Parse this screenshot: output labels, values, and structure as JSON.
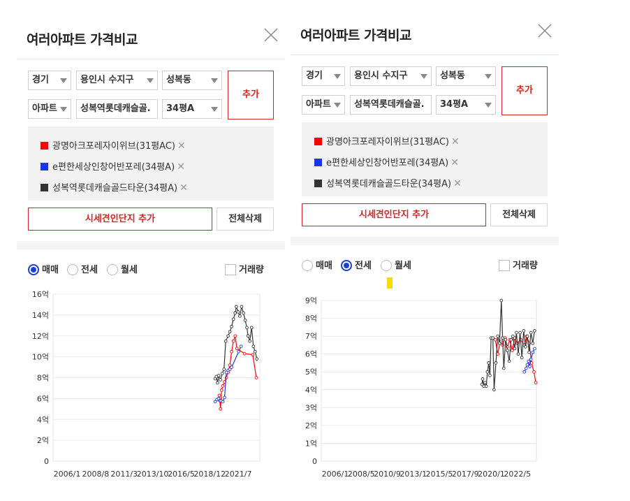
{
  "panels": [
    {
      "title": "여러아파트 가격비교",
      "filters": {
        "province": "경기",
        "city": "용인시 수지구",
        "dong": "성복동",
        "type": "아파트",
        "complex": "성복역롯데캐슬골.",
        "size": "34평A"
      },
      "add_label": "추가",
      "selected": [
        {
          "name": "광명아크포레자이위브(31평AC)",
          "color": "#ff0000"
        },
        {
          "name": "e편한세상인창어반포레(34평A)",
          "color": "#1a35e6"
        },
        {
          "name": "성복역롯데캐슬골드타운(34평A)",
          "color": "#333333"
        }
      ],
      "market_button": "시세견인단지 추가",
      "clear_button": "전체삭제",
      "radios": [
        {
          "label": "매매",
          "checked": true
        },
        {
          "label": "전세",
          "checked": false
        },
        {
          "label": "월세",
          "checked": false
        }
      ],
      "volume_label": "거래량",
      "chart_data": {
        "type": "line",
        "y_ticks": [
          "0",
          "2억",
          "4억",
          "6억",
          "8억",
          "10억",
          "12억",
          "14억",
          "16억"
        ],
        "x_ticks": [
          "2006/1",
          "2008/8",
          "2011/3",
          "2013/10",
          "2016/5",
          "2018/12",
          "2021/7"
        ],
        "ylim": [
          0,
          16
        ],
        "xlim": [
          2006.0,
          2023.6
        ],
        "series": [
          {
            "name": "광명아크포레자이위브(31평AC)",
            "color": "#ff0000",
            "points": [
              [
                2020.05,
                5.9
              ],
              [
                2020.15,
                6.3
              ],
              [
                2020.25,
                5.0
              ],
              [
                2020.35,
                6.8
              ],
              [
                2020.45,
                7.2
              ],
              [
                2020.6,
                7.6
              ],
              [
                2020.75,
                8.0
              ],
              [
                2020.9,
                8.5
              ],
              [
                2021.05,
                9.2
              ],
              [
                2021.2,
                10.5
              ],
              [
                2021.35,
                11.5
              ],
              [
                2021.5,
                12.0
              ],
              [
                2021.65,
                10.8
              ],
              [
                2022.3,
                10.3
              ],
              [
                2023.0,
                10.2
              ],
              [
                2023.3,
                8.0
              ]
            ]
          },
          {
            "name": "e편한세상인창어반포레(34평A)",
            "color": "#1a35e6",
            "points": [
              [
                2019.8,
                5.7
              ],
              [
                2019.95,
                5.9
              ],
              [
                2020.1,
                6.0
              ],
              [
                2020.2,
                5.8
              ],
              [
                2020.3,
                5.8
              ],
              [
                2020.45,
                5.7
              ],
              [
                2020.6,
                6.1
              ],
              [
                2020.75,
                8.5
              ],
              [
                2020.9,
                8.7
              ],
              [
                2021.05,
                8.8
              ],
              [
                2021.2,
                9.0
              ],
              [
                2021.8,
                10.5
              ],
              [
                2022.0,
                11.0
              ]
            ]
          },
          {
            "name": "성복역롯데캐슬골드타운(34평A)",
            "color": "#333333",
            "points": [
              [
                2019.8,
                7.9
              ],
              [
                2019.9,
                8.1
              ],
              [
                2020.0,
                7.5
              ],
              [
                2020.1,
                8.2
              ],
              [
                2020.25,
                7.8
              ],
              [
                2020.4,
                8.4
              ],
              [
                2020.55,
                8.8
              ],
              [
                2020.7,
                11.5
              ],
              [
                2020.9,
                12.0
              ],
              [
                2021.05,
                12.4
              ],
              [
                2021.2,
                12.9
              ],
              [
                2021.35,
                13.6
              ],
              [
                2021.5,
                14.2
              ],
              [
                2021.6,
                14.8
              ],
              [
                2021.75,
                14.3
              ],
              [
                2021.9,
                13.9
              ],
              [
                2022.05,
                14.8
              ],
              [
                2022.2,
                14.2
              ],
              [
                2022.35,
                13.5
              ],
              [
                2022.5,
                12.8
              ],
              [
                2022.6,
                12.0
              ],
              [
                2022.75,
                11.5
              ],
              [
                2022.9,
                12.8
              ],
              [
                2023.05,
                11.0
              ],
              [
                2023.2,
                10.5
              ],
              [
                2023.35,
                9.8
              ]
            ]
          }
        ]
      }
    },
    {
      "title": "여러아파트 가격비교",
      "filters": {
        "province": "경기",
        "city": "용인시 수지구",
        "dong": "성복동",
        "type": "아파트",
        "complex": "성복역롯데캐슬골.",
        "size": "34평A"
      },
      "add_label": "추가",
      "selected": [
        {
          "name": "광명아크포레자이위브(31평AC)",
          "color": "#ff0000"
        },
        {
          "name": "e편한세상인창어반포레(34평A)",
          "color": "#1a35e6"
        },
        {
          "name": "성복역롯데캐슬골드타운(34평A)",
          "color": "#333333"
        }
      ],
      "market_button": "시세견인단지 추가",
      "clear_button": "전체삭제",
      "radios": [
        {
          "label": "매매",
          "checked": false
        },
        {
          "label": "전세",
          "checked": true
        },
        {
          "label": "월세",
          "checked": false
        }
      ],
      "volume_label": "거래량",
      "chart_data": {
        "type": "line",
        "y_ticks": [
          "0",
          "1억",
          "2억",
          "3억",
          "4억",
          "5억",
          "6억",
          "7억",
          "8억",
          "9억"
        ],
        "x_ticks": [
          "2006/1",
          "2008/5",
          "2010/9",
          "2013/1",
          "2015/5",
          "2017/9",
          "2020/1",
          "2022/5"
        ],
        "ylim": [
          0,
          9
        ],
        "xlim": [
          2006.0,
          2023.8
        ],
        "series": [
          {
            "name": "광명아크포레자이위브(31평AC)",
            "color": "#ff0000",
            "points": [
              [
                2020.4,
                6.8
              ],
              [
                2020.6,
                6.0
              ],
              [
                2020.8,
                6.7
              ],
              [
                2021.0,
                6.5
              ],
              [
                2021.2,
                6.9
              ],
              [
                2021.4,
                6.4
              ],
              [
                2021.6,
                6.8
              ],
              [
                2021.8,
                6.2
              ],
              [
                2022.0,
                6.9
              ],
              [
                2022.2,
                6.6
              ],
              [
                2022.5,
                6.8
              ],
              [
                2022.8,
                6.5
              ],
              [
                2023.0,
                7.0
              ],
              [
                2023.2,
                6.6
              ],
              [
                2023.4,
                5.5
              ],
              [
                2023.6,
                5.0
              ],
              [
                2023.75,
                4.4
              ]
            ]
          },
          {
            "name": "e편한세상인창어반포레(34평A)",
            "color": "#1a35e6",
            "points": [
              [
                2022.8,
                5.0
              ],
              [
                2022.95,
                5.2
              ],
              [
                2023.05,
                5.4
              ],
              [
                2023.15,
                5.6
              ],
              [
                2023.25,
                5.3
              ],
              [
                2023.35,
                5.7
              ],
              [
                2023.5,
                6.1
              ],
              [
                2023.65,
                6.3
              ]
            ]
          },
          {
            "name": "성복역롯데캐슬골드타운(34평A)",
            "color": "#333333",
            "points": [
              [
                2019.3,
                4.3
              ],
              [
                2019.35,
                4.6
              ],
              [
                2019.45,
                4.2
              ],
              [
                2019.55,
                4.4
              ],
              [
                2019.65,
                4.2
              ],
              [
                2019.75,
                5.0
              ],
              [
                2019.85,
                5.5
              ],
              [
                2019.95,
                4.8
              ],
              [
                2020.05,
                6.9
              ],
              [
                2020.2,
                6.9
              ],
              [
                2020.3,
                4.0
              ],
              [
                2020.45,
                5.5
              ],
              [
                2020.6,
                7.0
              ],
              [
                2020.75,
                6.6
              ],
              [
                2020.9,
                9.0
              ],
              [
                2021.0,
                6.9
              ],
              [
                2021.1,
                5.2
              ],
              [
                2021.25,
                6.8
              ],
              [
                2021.4,
                6.2
              ],
              [
                2021.55,
                5.6
              ],
              [
                2021.7,
                6.8
              ],
              [
                2021.85,
                7.0
              ],
              [
                2022.0,
                6.3
              ],
              [
                2022.15,
                7.2
              ],
              [
                2022.3,
                6.0
              ],
              [
                2022.45,
                7.2
              ],
              [
                2022.6,
                5.8
              ],
              [
                2022.75,
                7.3
              ],
              [
                2022.9,
                6.4
              ],
              [
                2023.05,
                7.0
              ],
              [
                2023.2,
                6.1
              ],
              [
                2023.35,
                7.2
              ],
              [
                2023.5,
                6.6
              ],
              [
                2023.65,
                7.3
              ]
            ]
          }
        ]
      }
    }
  ]
}
